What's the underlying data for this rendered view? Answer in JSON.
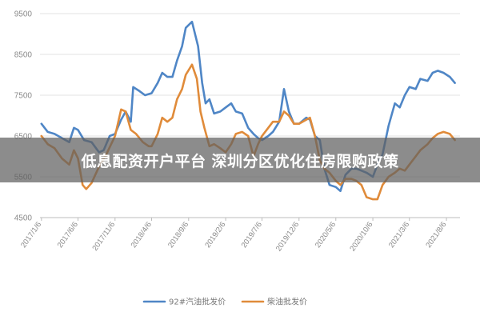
{
  "banner": {
    "title": "低息配资开户平台 深圳分区优化住房限购政策"
  },
  "chart_data": {
    "type": "line",
    "ylim": [
      4500,
      9500
    ],
    "yticks": [
      "9500",
      "8500",
      "7500",
      "6500",
      "5500",
      "4500"
    ],
    "ytick_values": [
      9500,
      8500,
      7500,
      6500,
      5500,
      4500
    ],
    "xlim": [
      "2016-12-31",
      "2021-10-01"
    ],
    "categories": [
      "2017/1/6",
      "2017/6/6",
      "2017/11/6",
      "2018/4/6",
      "2018/9/6",
      "2019/2/6",
      "2019/7/6",
      "2019/12/6",
      "2020/5/6",
      "2020/10/6",
      "2021/3/6",
      "2021/8/6"
    ],
    "category_dates": [
      "2017-01-06",
      "2017-06-06",
      "2017-11-06",
      "2018-04-06",
      "2018-09-06",
      "2019-02-06",
      "2019-07-06",
      "2019-12-06",
      "2020-05-06",
      "2020-10-06",
      "2021-03-06",
      "2021-08-06"
    ],
    "grid": true,
    "legend": "bottom",
    "series": [
      {
        "name": "92#汽油批发价",
        "color": "#4f86c6",
        "points": [
          [
            "2017-01-06",
            6800
          ],
          [
            "2017-02-01",
            6600
          ],
          [
            "2017-03-01",
            6550
          ],
          [
            "2017-04-01",
            6450
          ],
          [
            "2017-05-01",
            6350
          ],
          [
            "2017-05-20",
            6700
          ],
          [
            "2017-06-06",
            6650
          ],
          [
            "2017-07-01",
            6400
          ],
          [
            "2017-08-01",
            6350
          ],
          [
            "2017-09-01",
            6100
          ],
          [
            "2017-09-20",
            6150
          ],
          [
            "2017-10-15",
            6500
          ],
          [
            "2017-11-06",
            6550
          ],
          [
            "2017-12-01",
            6900
          ],
          [
            "2017-12-20",
            7100
          ],
          [
            "2018-01-10",
            6850
          ],
          [
            "2018-01-20",
            7700
          ],
          [
            "2018-02-15",
            7600
          ],
          [
            "2018-03-10",
            7500
          ],
          [
            "2018-04-06",
            7550
          ],
          [
            "2018-05-01",
            7800
          ],
          [
            "2018-05-20",
            8050
          ],
          [
            "2018-06-10",
            7950
          ],
          [
            "2018-07-01",
            7950
          ],
          [
            "2018-07-20",
            8350
          ],
          [
            "2018-08-10",
            8700
          ],
          [
            "2018-08-25",
            9150
          ],
          [
            "2018-09-20",
            9300
          ],
          [
            "2018-10-15",
            8700
          ],
          [
            "2018-11-01",
            7800
          ],
          [
            "2018-11-15",
            7300
          ],
          [
            "2018-12-01",
            7400
          ],
          [
            "2018-12-20",
            7050
          ],
          [
            "2019-01-15",
            7100
          ],
          [
            "2019-02-06",
            7200
          ],
          [
            "2019-03-01",
            7300
          ],
          [
            "2019-03-20",
            7100
          ],
          [
            "2019-04-15",
            7050
          ],
          [
            "2019-05-10",
            6700
          ],
          [
            "2019-06-01",
            6550
          ],
          [
            "2019-06-20",
            6450
          ],
          [
            "2019-07-06",
            6400
          ],
          [
            "2019-08-01",
            6500
          ],
          [
            "2019-08-20",
            6600
          ],
          [
            "2019-09-15",
            6850
          ],
          [
            "2019-10-05",
            7650
          ],
          [
            "2019-10-25",
            7100
          ],
          [
            "2019-11-15",
            6800
          ],
          [
            "2019-12-06",
            6800
          ],
          [
            "2020-01-05",
            6950
          ],
          [
            "2020-01-20",
            6900
          ],
          [
            "2020-02-10",
            6500
          ],
          [
            "2020-03-01",
            6400
          ],
          [
            "2020-03-20",
            5700
          ],
          [
            "2020-04-10",
            5300
          ],
          [
            "2020-05-06",
            5250
          ],
          [
            "2020-05-25",
            5150
          ],
          [
            "2020-06-15",
            5550
          ],
          [
            "2020-07-10",
            5700
          ],
          [
            "2020-07-30",
            5700
          ],
          [
            "2020-08-20",
            5650
          ],
          [
            "2020-09-10",
            5600
          ],
          [
            "2020-10-06",
            5500
          ],
          [
            "2020-10-25",
            5800
          ],
          [
            "2020-11-15",
            6050
          ],
          [
            "2020-12-10",
            6750
          ],
          [
            "2021-01-05",
            7300
          ],
          [
            "2021-01-25",
            7200
          ],
          [
            "2021-02-15",
            7500
          ],
          [
            "2021-03-06",
            7700
          ],
          [
            "2021-04-01",
            7650
          ],
          [
            "2021-04-20",
            7900
          ],
          [
            "2021-05-20",
            7850
          ],
          [
            "2021-06-10",
            8050
          ],
          [
            "2021-07-01",
            8100
          ],
          [
            "2021-07-25",
            8050
          ],
          [
            "2021-08-20",
            7950
          ],
          [
            "2021-09-10",
            7800
          ]
        ]
      },
      {
        "name": "柴油批发价",
        "color": "#e08b3a",
        "points": [
          [
            "2017-01-06",
            6500
          ],
          [
            "2017-02-01",
            6300
          ],
          [
            "2017-03-01",
            6200
          ],
          [
            "2017-04-01",
            5950
          ],
          [
            "2017-05-01",
            5800
          ],
          [
            "2017-05-20",
            6150
          ],
          [
            "2017-06-06",
            5950
          ],
          [
            "2017-06-25",
            5300
          ],
          [
            "2017-07-10",
            5200
          ],
          [
            "2017-08-01",
            5350
          ],
          [
            "2017-09-01",
            5750
          ],
          [
            "2017-10-01",
            6050
          ],
          [
            "2017-11-06",
            6500
          ],
          [
            "2017-12-01",
            7150
          ],
          [
            "2017-12-20",
            7100
          ],
          [
            "2018-01-10",
            6650
          ],
          [
            "2018-02-01",
            6550
          ],
          [
            "2018-03-01",
            6350
          ],
          [
            "2018-03-25",
            6250
          ],
          [
            "2018-04-06",
            6250
          ],
          [
            "2018-05-01",
            6550
          ],
          [
            "2018-05-20",
            6950
          ],
          [
            "2018-06-10",
            6850
          ],
          [
            "2018-07-01",
            6950
          ],
          [
            "2018-07-20",
            7400
          ],
          [
            "2018-08-10",
            7650
          ],
          [
            "2018-08-25",
            8000
          ],
          [
            "2018-09-20",
            8250
          ],
          [
            "2018-10-10",
            7900
          ],
          [
            "2018-10-25",
            7100
          ],
          [
            "2018-11-10",
            6700
          ],
          [
            "2018-12-01",
            6250
          ],
          [
            "2018-12-20",
            6300
          ],
          [
            "2019-01-15",
            6200
          ],
          [
            "2019-02-06",
            6100
          ],
          [
            "2019-03-01",
            6300
          ],
          [
            "2019-03-20",
            6550
          ],
          [
            "2019-04-15",
            6600
          ],
          [
            "2019-05-10",
            6500
          ],
          [
            "2019-06-01",
            6000
          ],
          [
            "2019-06-20",
            6300
          ],
          [
            "2019-07-06",
            6500
          ],
          [
            "2019-08-01",
            6700
          ],
          [
            "2019-08-20",
            6850
          ],
          [
            "2019-09-15",
            6850
          ],
          [
            "2019-10-05",
            7100
          ],
          [
            "2019-10-25",
            7000
          ],
          [
            "2019-11-15",
            6800
          ],
          [
            "2019-12-06",
            6800
          ],
          [
            "2020-01-05",
            6900
          ],
          [
            "2020-01-20",
            6950
          ],
          [
            "2020-02-10",
            6500
          ],
          [
            "2020-03-01",
            5900
          ],
          [
            "2020-03-20",
            5700
          ],
          [
            "2020-04-10",
            5600
          ],
          [
            "2020-05-06",
            5400
          ],
          [
            "2020-05-25",
            5300
          ],
          [
            "2020-06-15",
            5450
          ],
          [
            "2020-07-10",
            5450
          ],
          [
            "2020-07-30",
            5400
          ],
          [
            "2020-08-20",
            5300
          ],
          [
            "2020-09-10",
            5000
          ],
          [
            "2020-10-06",
            4950
          ],
          [
            "2020-10-25",
            4950
          ],
          [
            "2020-11-15",
            5300
          ],
          [
            "2020-12-10",
            5500
          ],
          [
            "2021-01-05",
            5600
          ],
          [
            "2021-01-25",
            5700
          ],
          [
            "2021-02-15",
            5650
          ],
          [
            "2021-03-06",
            5800
          ],
          [
            "2021-04-01",
            6000
          ],
          [
            "2021-04-20",
            6150
          ],
          [
            "2021-05-20",
            6300
          ],
          [
            "2021-06-10",
            6450
          ],
          [
            "2021-07-01",
            6550
          ],
          [
            "2021-07-25",
            6600
          ],
          [
            "2021-08-20",
            6550
          ],
          [
            "2021-09-10",
            6400
          ]
        ]
      }
    ]
  }
}
